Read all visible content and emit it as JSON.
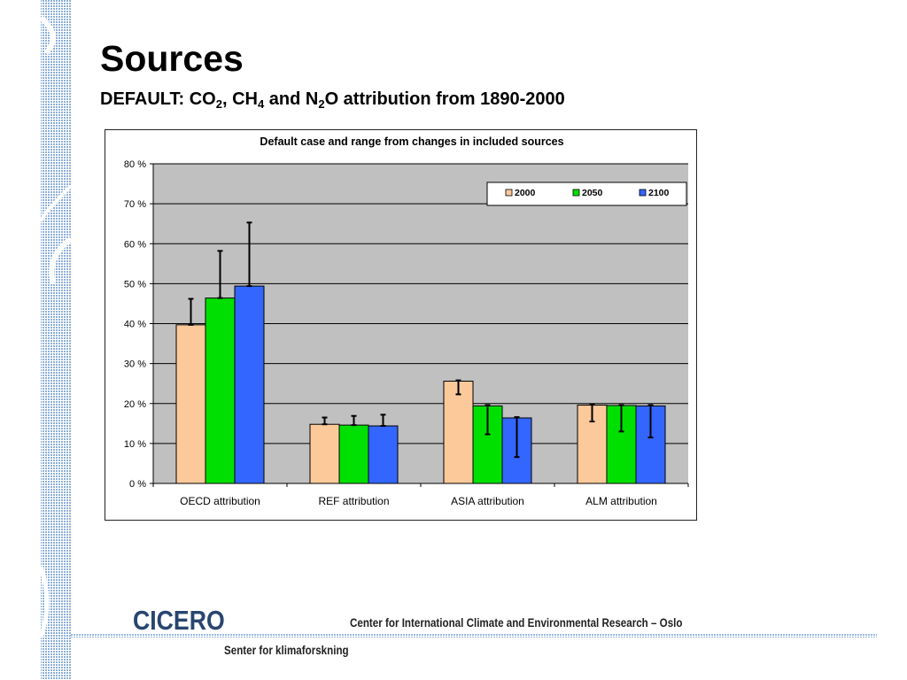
{
  "slide": {
    "title": "Sources",
    "subtitle_parts": {
      "p1": "DEFAULT: CO",
      "s1": "2",
      "p2": ", CH",
      "s2": "4",
      "p3": " and N",
      "s3": "2",
      "p4": "O attribution from 1890-2000"
    }
  },
  "footer": {
    "logo": "CICERO",
    "org_name": "Center for International Climate and Environmental Research – Oslo",
    "org_name_local": "Senter for klimaforskning"
  },
  "colors": {
    "band": "#9bb8dc",
    "plot_bg": "#c0c0c0",
    "s2000": "#fcc99b",
    "s2050": "#00e000",
    "s2100": "#3366ff"
  },
  "chart_data": {
    "type": "bar",
    "title": "Default case and range from changes in included sources",
    "categories": [
      "OECD attribution",
      "REF attribution",
      "ASIA attribution",
      "ALM attribution"
    ],
    "yticks": [
      "0 %",
      "10 %",
      "20 %",
      "30 %",
      "40 %",
      "50 %",
      "60 %",
      "70 %",
      "80 %"
    ],
    "ylim": [
      0,
      80
    ],
    "grid": true,
    "legend": "top-right",
    "series": [
      {
        "name": "2000",
        "values": [
          39.7,
          14.8,
          25.6,
          19.6
        ],
        "err_low": [
          39.7,
          14.8,
          22.3,
          15.5
        ],
        "err_high": [
          46.2,
          16.5,
          25.8,
          19.8
        ]
      },
      {
        "name": "2050",
        "values": [
          46.4,
          14.6,
          19.4,
          19.5
        ],
        "err_low": [
          46.4,
          14.6,
          12.3,
          13.0
        ],
        "err_high": [
          58.2,
          16.9,
          19.6,
          19.6
        ]
      },
      {
        "name": "2100",
        "values": [
          49.4,
          14.4,
          16.4,
          19.4
        ],
        "err_low": [
          49.4,
          14.4,
          6.6,
          11.5
        ],
        "err_high": [
          65.3,
          17.2,
          16.6,
          19.6
        ]
      }
    ]
  }
}
